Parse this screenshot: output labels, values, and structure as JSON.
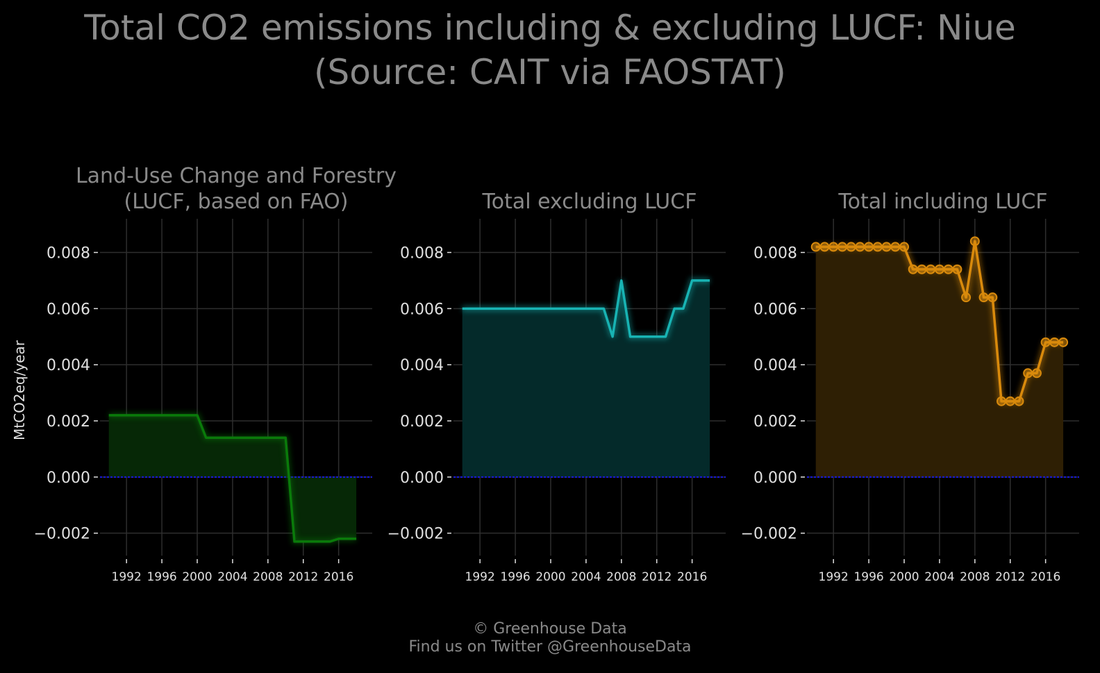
{
  "title_line1": "Total CO2 emissions including & excluding LUCF: Niue",
  "title_line2": "(Source: CAIT via FAOSTAT)",
  "ylabel": "MtCO2eq/year",
  "footer_line1": "© Greenhouse Data",
  "footer_line2": "Find us on Twitter @GreenhouseData",
  "colors": {
    "background": "#000000",
    "grid": "#2e2e2e",
    "text": "#8a8a8a",
    "tick_text": "#e0e0e0",
    "zero_line": "#1a1adb"
  },
  "chart_data": [
    {
      "type": "area",
      "title_lines": [
        "Land-Use Change and Forestry",
        "(LUCF, based on FAO)"
      ],
      "color": "#0a7a0a",
      "fill": "#062806",
      "markers": false,
      "x": [
        1990,
        1991,
        1992,
        1993,
        1994,
        1995,
        1996,
        1997,
        1998,
        1999,
        2000,
        2001,
        2002,
        2003,
        2004,
        2005,
        2006,
        2007,
        2008,
        2009,
        2010,
        2011,
        2012,
        2013,
        2014,
        2015,
        2016,
        2017,
        2018
      ],
      "y": [
        0.0022,
        0.0022,
        0.0022,
        0.0022,
        0.0022,
        0.0022,
        0.0022,
        0.0022,
        0.0022,
        0.0022,
        0.0022,
        0.0014,
        0.0014,
        0.0014,
        0.0014,
        0.0014,
        0.0014,
        0.0014,
        0.0014,
        0.0014,
        0.0014,
        -0.0023,
        -0.0023,
        -0.0023,
        -0.0023,
        -0.0023,
        -0.0022,
        -0.0022,
        -0.0022
      ],
      "ylim": [
        -0.0028,
        0.0092
      ],
      "yticks": [
        -0.002,
        0,
        0.002,
        0.004,
        0.006,
        0.008
      ],
      "ytick_labels": [
        "−0.002",
        "0.000",
        "0.002",
        "0.004",
        "0.006",
        "0.008"
      ],
      "xticks": [
        1992,
        1996,
        2000,
        2004,
        2008,
        2012,
        2016
      ],
      "xtick_labels": [
        "1992",
        "1996",
        "2000",
        "2004",
        "2008",
        "2012",
        "2016"
      ],
      "grid": true
    },
    {
      "type": "area",
      "title_lines": [
        "Total excluding LUCF"
      ],
      "color": "#18b3b3",
      "fill": "#042a2a",
      "markers": false,
      "x": [
        1990,
        1991,
        1992,
        1993,
        1994,
        1995,
        1996,
        1997,
        1998,
        1999,
        2000,
        2001,
        2002,
        2003,
        2004,
        2005,
        2006,
        2007,
        2008,
        2009,
        2010,
        2011,
        2012,
        2013,
        2014,
        2015,
        2016,
        2017,
        2018
      ],
      "y": [
        0.006,
        0.006,
        0.006,
        0.006,
        0.006,
        0.006,
        0.006,
        0.006,
        0.006,
        0.006,
        0.006,
        0.006,
        0.006,
        0.006,
        0.006,
        0.006,
        0.006,
        0.005,
        0.007,
        0.005,
        0.005,
        0.005,
        0.005,
        0.005,
        0.006,
        0.006,
        0.007,
        0.007,
        0.007
      ],
      "ylim": [
        -0.0028,
        0.0092
      ],
      "yticks": [
        -0.002,
        0,
        0.002,
        0.004,
        0.006,
        0.008
      ],
      "ytick_labels": [
        "−0.002",
        "0.000",
        "0.002",
        "0.004",
        "0.006",
        "0.008"
      ],
      "xticks": [
        1992,
        1996,
        2000,
        2004,
        2008,
        2012,
        2016
      ],
      "xtick_labels": [
        "1992",
        "1996",
        "2000",
        "2004",
        "2008",
        "2012",
        "2016"
      ],
      "grid": true
    },
    {
      "type": "area",
      "title_lines": [
        "Total including LUCF"
      ],
      "color": "#d98a0c",
      "fill": "#2e1f04",
      "markers": true,
      "x": [
        1990,
        1991,
        1992,
        1993,
        1994,
        1995,
        1996,
        1997,
        1998,
        1999,
        2000,
        2001,
        2002,
        2003,
        2004,
        2005,
        2006,
        2007,
        2008,
        2009,
        2010,
        2011,
        2012,
        2013,
        2014,
        2015,
        2016,
        2017,
        2018
      ],
      "y": [
        0.0082,
        0.0082,
        0.0082,
        0.0082,
        0.0082,
        0.0082,
        0.0082,
        0.0082,
        0.0082,
        0.0082,
        0.0082,
        0.0074,
        0.0074,
        0.0074,
        0.0074,
        0.0074,
        0.0074,
        0.0064,
        0.0084,
        0.0064,
        0.0064,
        0.0027,
        0.0027,
        0.0027,
        0.0037,
        0.0037,
        0.0048,
        0.0048,
        0.0048
      ],
      "ylim": [
        -0.0028,
        0.0092
      ],
      "yticks": [
        -0.002,
        0,
        0.002,
        0.004,
        0.006,
        0.008
      ],
      "ytick_labels": [
        "−0.002",
        "0.000",
        "0.002",
        "0.004",
        "0.006",
        "0.008"
      ],
      "xticks": [
        1992,
        1996,
        2000,
        2004,
        2008,
        2012,
        2016
      ],
      "xtick_labels": [
        "1992",
        "1996",
        "2000",
        "2004",
        "2008",
        "2012",
        "2016"
      ],
      "grid": true
    }
  ]
}
